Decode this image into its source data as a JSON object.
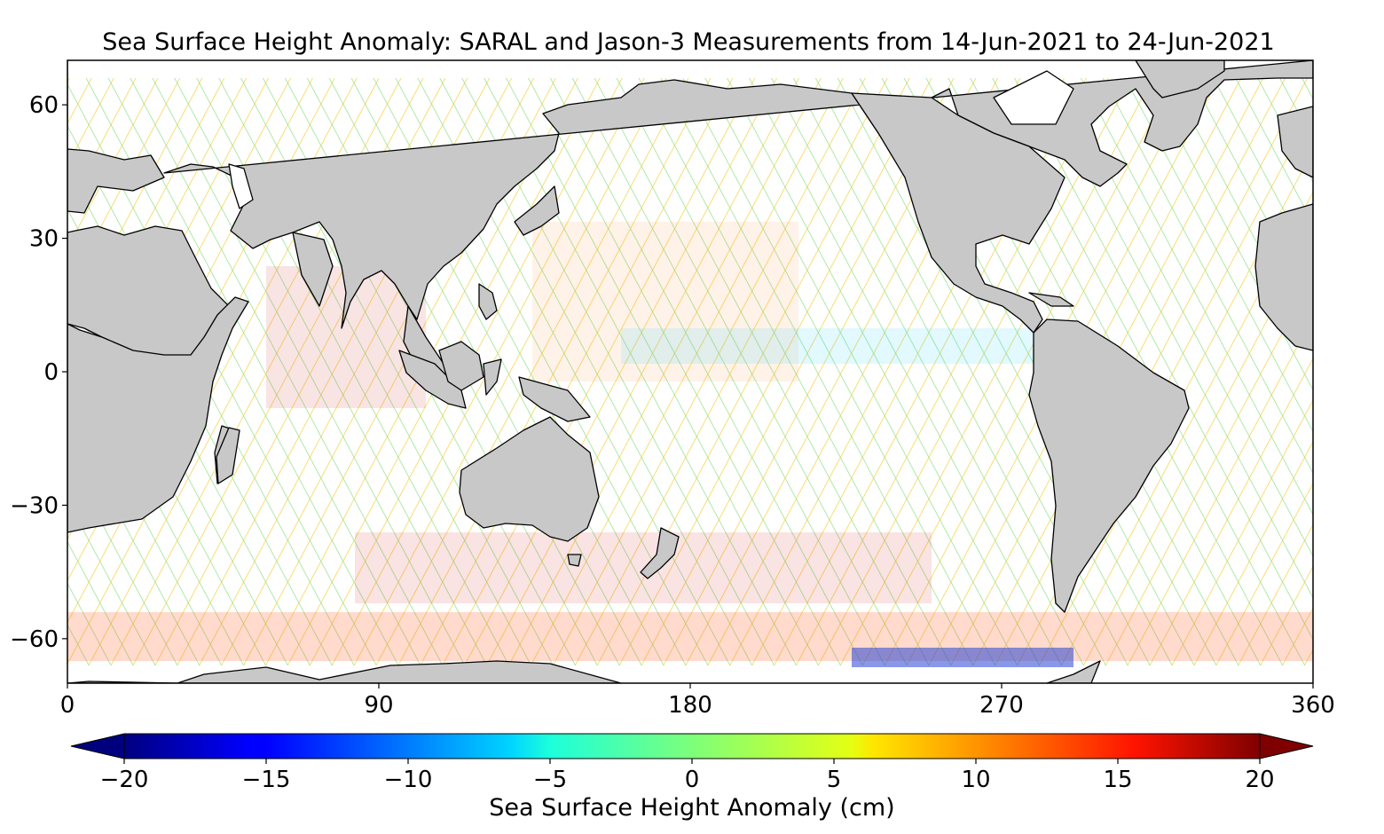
{
  "title": "Sea Surface Height Anomaly: SARAL and Jason-3 Measurements from 14-Jun-2021 to 24-Jun-2021",
  "map": {
    "x_ticks": [
      "0",
      "90",
      "180",
      "270",
      "360"
    ],
    "x_values": [
      0,
      90,
      180,
      270,
      360
    ],
    "y_ticks": [
      "60",
      "30",
      "0",
      "−30",
      "−60"
    ],
    "y_values": [
      60,
      30,
      0,
      -30,
      -60
    ],
    "lon_range": [
      0,
      360
    ],
    "lat_range": [
      -70,
      70
    ],
    "land_color": "#c8c8c8",
    "ocean_color": "#ffffff"
  },
  "colorbar": {
    "label": "Sea Surface Height Anomaly (cm)",
    "tick_labels": [
      "−20",
      "−15",
      "−10",
      "−5",
      "0",
      "5",
      "10",
      "15",
      "20"
    ],
    "tick_values": [
      -20,
      -15,
      -10,
      -5,
      0,
      5,
      10,
      15,
      20
    ],
    "range": [
      -20,
      20
    ],
    "colormap": "jet",
    "extend": "both"
  }
}
